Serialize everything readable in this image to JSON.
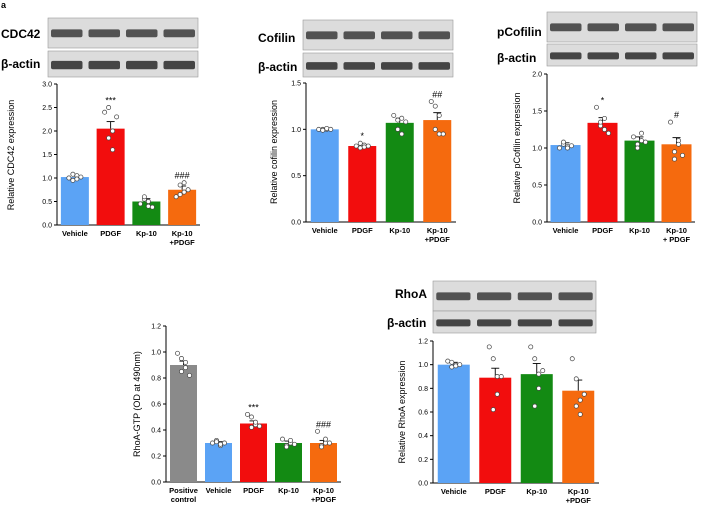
{
  "panel_label": "a",
  "colors": {
    "vehicle": "#5ba3f5",
    "pdgf": "#f20d0d",
    "kp10": "#138a13",
    "kp10_pdgf": "#f56a0e",
    "positive_control": "#8a8a8a"
  },
  "chart_data": [
    {
      "type": "bar",
      "blot_labels": [
        "CDC42",
        "β-actin"
      ],
      "categories": [
        "Vehicle",
        "PDGF",
        "Kp-10",
        "Kp-10\n+PDGF"
      ],
      "values": [
        1.02,
        2.05,
        0.5,
        0.75
      ],
      "errors": [
        0.05,
        0.15,
        0.06,
        0.08
      ],
      "points": [
        [
          1.0,
          0.95,
          1.05,
          1.08,
          0.98,
          1.02
        ],
        [
          2.4,
          2.5,
          2.0,
          1.85,
          1.6,
          2.3
        ],
        [
          0.45,
          0.55,
          0.4,
          0.6,
          0.5,
          0.38
        ],
        [
          0.6,
          0.85,
          0.9,
          0.65,
          0.7,
          0.75
        ]
      ],
      "annotations": [
        "",
        "***",
        "",
        "###"
      ],
      "ylabel": "Relative CDC42 expression",
      "ylim": [
        0,
        3.0
      ],
      "yticks": [
        "0.0",
        "0.5",
        "1.0",
        "1.5",
        "2.0",
        "2.5",
        "3.0"
      ]
    },
    {
      "type": "bar",
      "blot_labels": [
        "Cofilin",
        "β-actin"
      ],
      "categories": [
        "Vehicle",
        "PDGF",
        "Kp-10",
        "Kp-10\n+PDGF"
      ],
      "values": [
        1.0,
        0.82,
        1.07,
        1.1
      ],
      "errors": [
        0.01,
        0.02,
        0.05,
        0.08
      ],
      "points": [
        [
          1.0,
          1.0,
          1.0,
          0.99,
          1.01,
          1.0
        ],
        [
          0.82,
          0.8,
          0.83,
          0.85,
          0.81,
          0.82
        ],
        [
          1.15,
          1.1,
          0.95,
          1.0,
          1.12,
          1.08
        ],
        [
          1.3,
          1.25,
          0.95,
          1.0,
          1.15,
          0.95
        ]
      ],
      "annotations": [
        "",
        "*",
        "",
        "##"
      ],
      "ylabel": "Relative cofilin expression",
      "ylim": [
        0,
        1.5
      ],
      "yticks": [
        "0.0",
        "0.5",
        "1.0",
        "1.5"
      ]
    },
    {
      "type": "bar",
      "blot_labels": [
        "pCofilin",
        "β-actin"
      ],
      "categories": [
        "Vehicle",
        "PDGF",
        "Kp-10",
        "Kp-10\n+ PDGF"
      ],
      "values": [
        1.04,
        1.34,
        1.1,
        1.05
      ],
      "errors": [
        0.03,
        0.07,
        0.05,
        0.09
      ],
      "points": [
        [
          1.0,
          1.05,
          1.02,
          1.08,
          1.0,
          1.03
        ],
        [
          1.55,
          1.3,
          1.25,
          1.35,
          1.4,
          1.2
        ],
        [
          1.15,
          1.05,
          1.2,
          1.0,
          1.1,
          1.08
        ],
        [
          1.35,
          0.95,
          1.1,
          0.85,
          1.05,
          0.9
        ]
      ],
      "annotations": [
        "",
        "*",
        "",
        "#"
      ],
      "ylabel": "Relative pCofilin expression",
      "ylim": [
        0,
        2.0
      ],
      "yticks": [
        "0.0",
        "0.5",
        "1.0",
        "1.5",
        "2.0"
      ]
    },
    {
      "type": "bar",
      "blot_labels": [],
      "categories": [
        "Positive\ncontrol",
        "Vehicle",
        "PDGF",
        "Kp-10",
        "Kp-10\n+PDGF"
      ],
      "values": [
        0.9,
        0.3,
        0.45,
        0.3,
        0.3
      ],
      "errors": [
        0.03,
        0.01,
        0.02,
        0.015,
        0.02
      ],
      "points": [
        [
          0.99,
          0.95,
          0.88,
          0.85,
          0.92,
          0.82
        ],
        [
          0.3,
          0.32,
          0.28,
          0.31,
          0.29,
          0.3
        ],
        [
          0.52,
          0.5,
          0.44,
          0.42,
          0.46,
          0.43
        ],
        [
          0.33,
          0.28,
          0.3,
          0.27,
          0.32,
          0.29
        ],
        [
          0.39,
          0.28,
          0.3,
          0.27,
          0.33,
          0.3
        ]
      ],
      "annotations": [
        "",
        "",
        "***",
        "",
        "###"
      ],
      "ylabel": "RhoA-GTP (OD at 490nm)",
      "ylim": [
        0,
        1.2
      ],
      "yticks": [
        "0.0",
        "0.2",
        "0.4",
        "0.6",
        "0.8",
        "1.0",
        "1.2"
      ]
    },
    {
      "type": "bar",
      "blot_labels": [
        "RhoA",
        "β-actin"
      ],
      "categories": [
        "Vehicle",
        "PDGF",
        "Kp-10",
        "Kp-10\n+PDGF"
      ],
      "values": [
        1.0,
        0.89,
        0.92,
        0.78
      ],
      "errors": [
        0.02,
        0.08,
        0.09,
        0.09
      ],
      "points": [
        [
          1.03,
          0.98,
          1.0,
          1.02,
          0.99,
          1.0
        ],
        [
          1.15,
          1.05,
          0.9,
          0.62,
          0.75,
          0.9
        ],
        [
          1.15,
          1.05,
          0.92,
          0.65,
          0.8,
          0.95
        ],
        [
          1.05,
          0.88,
          0.7,
          0.65,
          0.58,
          0.75
        ]
      ],
      "annotations": [
        "",
        "",
        "",
        ""
      ],
      "ylabel": "Relative RhoA expression",
      "ylim": [
        0,
        1.2
      ],
      "yticks": [
        "0.0",
        "0.2",
        "0.4",
        "0.6",
        "0.8",
        "1.0",
        "1.2"
      ]
    }
  ]
}
